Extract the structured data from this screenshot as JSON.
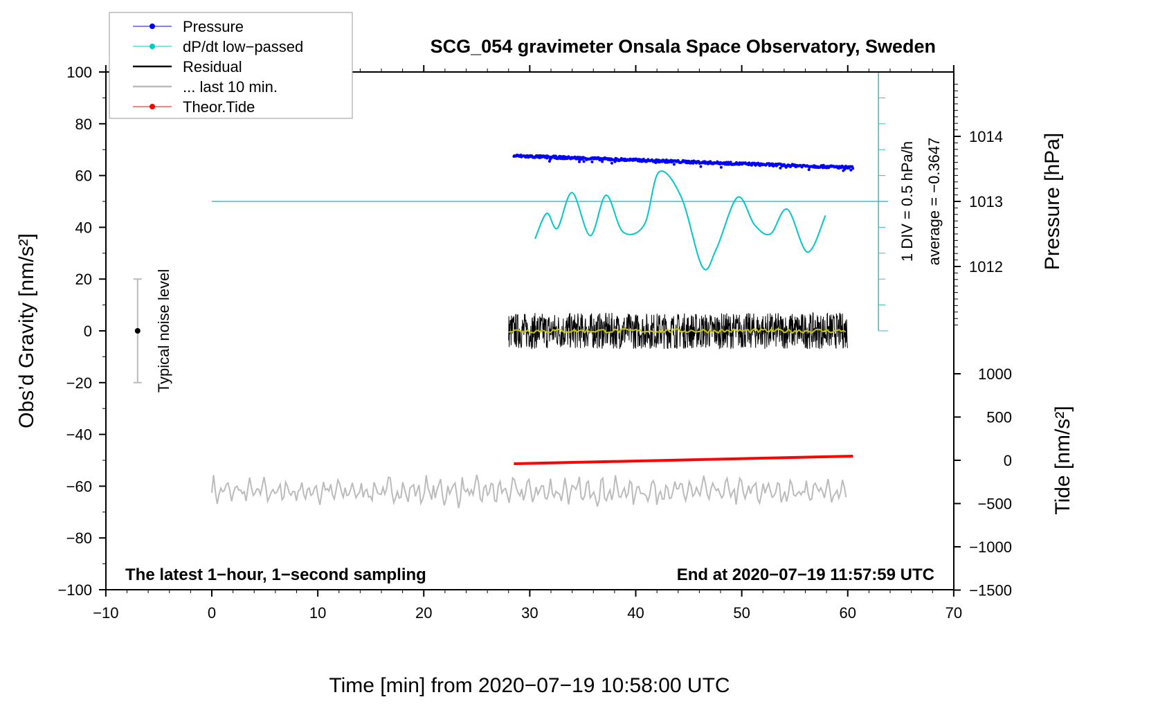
{
  "chart_data": {
    "type": "line",
    "title": "SCG_054 gravimeter Onsala Space Observatory, Sweden",
    "xlabel": "Time [min] from 2020−07−19 10:58:00 UTC",
    "ylabel": "Obs’d Gravity [nm/s²]",
    "ylabel_right_top": "Pressure [hPa]",
    "ylabel_right_bottom": "Tide [nm/s²]",
    "xlim": [
      -10,
      70
    ],
    "ylim": [
      -100,
      100
    ],
    "xticks": [
      "−10",
      "0",
      "10",
      "20",
      "30",
      "40",
      "50",
      "60",
      "70"
    ],
    "yticks": [
      "100",
      "80",
      "60",
      "40",
      "20",
      "0",
      "−20",
      "−40",
      "−60",
      "−80",
      "−100"
    ],
    "pressure_ticks": [
      "1014",
      "1013",
      "1012"
    ],
    "tide_ticks": [
      "1000",
      "500",
      "0",
      "−500",
      "−1000",
      "−1500"
    ],
    "legend": {
      "placement": "top-left",
      "entries": [
        {
          "label": "Pressure",
          "color": "#0000ff",
          "marker": true
        },
        {
          "label": "dP/dt low−passed",
          "color": "#00c8c8",
          "marker": true
        },
        {
          "label": "Residual",
          "color": "#000000",
          "marker": false
        },
        {
          "label": "... last 10 min.",
          "color": "#bbbbbb",
          "marker": false
        },
        {
          "label": "Theor.Tide",
          "color": "#ff0000",
          "marker": true
        }
      ]
    },
    "annotations": {
      "noise": "Typical noise level",
      "div": "1 DIV = 0.5 hPa/h",
      "average": "average = −0.3647",
      "bottom_left": "The latest 1−hour, 1−second sampling",
      "bottom_right": "End at 2020−07−19 11:57:59 UTC"
    },
    "noise_level": {
      "x": -7,
      "center": 0,
      "range": [
        -20,
        20
      ]
    },
    "series": [
      {
        "name": "Pressure",
        "unit": "hPa",
        "x_range": [
          28.5,
          60.5
        ],
        "start": 1013.7,
        "end": 1013.52,
        "scatter": 0.04
      },
      {
        "name": "dP/dt low-passed",
        "unit": "hPa/h",
        "x": [
          30.5,
          31.6,
          32.6,
          34.0,
          35.7,
          37.2,
          38.8,
          40.8,
          42.2,
          44.3,
          46.3,
          47.6,
          49.6,
          51.2,
          52.7,
          54.3,
          56.2,
          57.9
        ],
        "y": [
          -0.72,
          -0.23,
          -0.52,
          0.17,
          -0.66,
          0.12,
          -0.59,
          -0.45,
          0.57,
          0.08,
          -1.27,
          -0.92,
          0.08,
          -0.45,
          -0.63,
          -0.15,
          -0.98,
          -0.27
        ]
      },
      {
        "name": "Residual",
        "unit": "nm/s2",
        "x_range": [
          28,
          60
        ],
        "mean": 0,
        "amplitude": 7
      },
      {
        "name": "last 10 min",
        "unit": "nm/s2",
        "x_range": [
          0,
          60
        ],
        "mean": -62,
        "amplitude": 5
      },
      {
        "name": "Theor.Tide",
        "unit": "nm/s2",
        "x_range": [
          28.5,
          60.5
        ],
        "start": -40,
        "end": 48
      }
    ]
  }
}
